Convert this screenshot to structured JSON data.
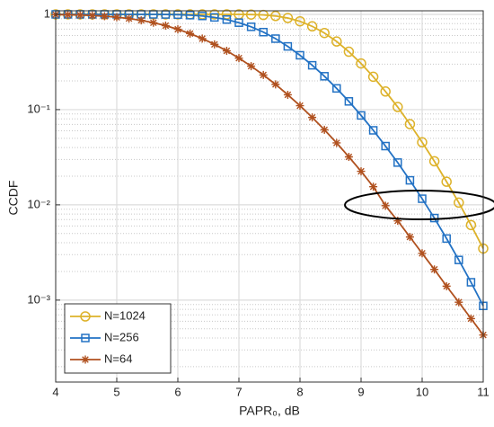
{
  "chart_data": {
    "type": "line",
    "xlabel": "PAPR₀, dB",
    "ylabel": "CCDF",
    "ylog": true,
    "grid": true,
    "legend": "lower-left",
    "xlim": [
      4,
      11
    ],
    "xticks": [
      4,
      5,
      6,
      7,
      8,
      9,
      10,
      11
    ],
    "ylim": [
      0.000138,
      1.09
    ],
    "yticks": [
      {
        "value": 0.001,
        "label": "10⁻³"
      },
      {
        "value": 0.01,
        "label": "10⁻²"
      },
      {
        "value": 0.1,
        "label": "10⁻¹"
      },
      1
    ],
    "yminorticks": [
      0.0002,
      0.0003,
      0.0004,
      0.0005,
      0.0006,
      0.0007,
      0.0008,
      0.0009,
      0.002,
      0.003,
      0.004,
      0.005,
      0.006,
      0.007,
      0.008,
      0.009,
      0.02,
      0.03,
      0.04,
      0.05,
      0.06,
      0.07,
      0.08,
      0.09,
      0.2,
      0.3,
      0.4,
      0.5,
      0.6,
      0.7,
      0.8,
      0.9
    ],
    "x": [
      4.0,
      4.2,
      4.4,
      4.6,
      4.8,
      5.0,
      5.2,
      5.4,
      5.6,
      5.8,
      6.0,
      6.2,
      6.4,
      6.6,
      6.8,
      7.0,
      7.2,
      7.4,
      7.6,
      7.8,
      8.0,
      8.2,
      8.4,
      8.6,
      8.8,
      9.0,
      9.2,
      9.4,
      9.6,
      9.8,
      10.0,
      10.2,
      10.4,
      10.6,
      10.8,
      11.0
    ],
    "series": [
      {
        "name": "N=1024",
        "color": "#DDB22A",
        "marker": "o",
        "values": [
          1,
          1,
          1,
          1,
          1,
          1,
          1,
          1,
          1,
          1,
          1,
          1,
          1,
          1,
          1,
          0.999,
          0.995,
          0.985,
          0.961,
          0.915,
          0.845,
          0.749,
          0.637,
          0.519,
          0.405,
          0.305,
          0.221,
          0.155,
          0.1065,
          0.0704,
          0.0454,
          0.0287,
          0.0175,
          0.01055,
          0.00614,
          0.00348
        ]
      },
      {
        "name": "N=256",
        "color": "#2372C4",
        "marker": "s",
        "values": [
          1,
          1,
          1,
          1,
          1,
          1,
          1,
          1,
          0.999,
          0.997,
          0.992,
          0.981,
          0.962,
          0.929,
          0.882,
          0.818,
          0.74,
          0.651,
          0.556,
          0.461,
          0.372,
          0.292,
          0.224,
          0.167,
          0.122,
          0.0869,
          0.0606,
          0.0414,
          0.0278,
          0.0181,
          0.0116,
          0.00727,
          0.00443,
          0.00264,
          0.00154,
          0.00087
        ]
      },
      {
        "name": "N=64",
        "color": "#B0511F",
        "marker": "*",
        "values": [
          0.994,
          0.99,
          0.983,
          0.972,
          0.956,
          0.933,
          0.904,
          0.865,
          0.817,
          0.761,
          0.697,
          0.628,
          0.557,
          0.484,
          0.414,
          0.347,
          0.286,
          0.231,
          0.184,
          0.143,
          0.11,
          0.0828,
          0.0614,
          0.0447,
          0.0319,
          0.0225,
          0.0155,
          0.0098,
          0.0068,
          0.0046,
          0.0031,
          0.0021,
          0.0014,
          0.00095,
          0.00064,
          0.00043
        ]
      }
    ]
  }
}
